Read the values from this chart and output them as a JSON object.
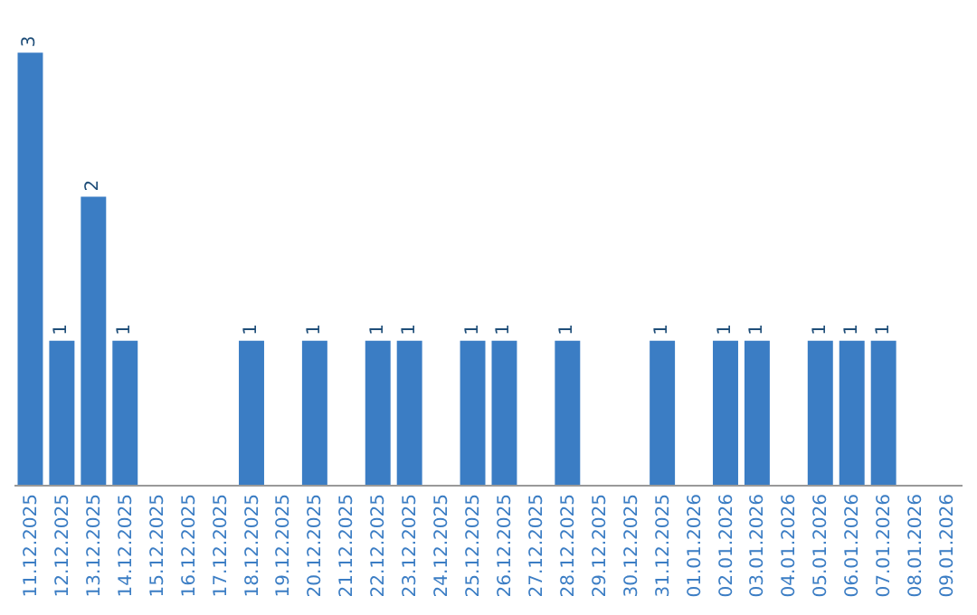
{
  "chart_data": {
    "type": "bar",
    "categories": [
      "11.12.2025",
      "12.12.2025",
      "13.12.2025",
      "14.12.2025",
      "15.12.2025",
      "16.12.2025",
      "17.12.2025",
      "18.12.2025",
      "19.12.2025",
      "20.12.2025",
      "21.12.2025",
      "22.12.2025",
      "23.12.2025",
      "24.12.2025",
      "25.12.2025",
      "26.12.2025",
      "27.12.2025",
      "28.12.2025",
      "29.12.2025",
      "30.12.2025",
      "31.12.2025",
      "01.01.2026",
      "02.01.2026",
      "03.01.2026",
      "04.01.2026",
      "05.01.2026",
      "06.01.2026",
      "07.01.2026",
      "08.01.2026",
      "09.01.2026"
    ],
    "values": [
      3,
      1,
      2,
      1,
      0,
      0,
      0,
      1,
      0,
      1,
      0,
      1,
      1,
      0,
      1,
      1,
      0,
      1,
      0,
      0,
      1,
      0,
      1,
      1,
      0,
      1,
      1,
      1,
      0,
      0
    ],
    "value_labels": [
      "3",
      "1",
      "2",
      "1",
      null,
      null,
      null,
      "1",
      null,
      "1",
      null,
      "1",
      "1",
      null,
      "1",
      "1",
      null,
      "1",
      null,
      null,
      "1",
      null,
      "1",
      "1",
      null,
      "1",
      "1",
      "1",
      null,
      null
    ],
    "color": "#3b7dc4"
  }
}
